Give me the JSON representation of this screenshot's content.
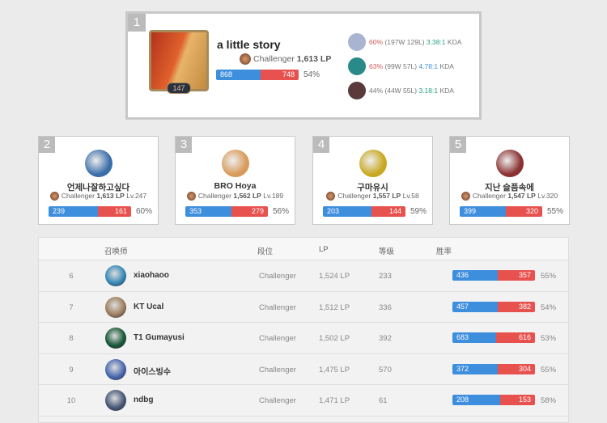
{
  "top": {
    "rank": "1",
    "name": "a little story",
    "level": "147",
    "tier": "Challenger",
    "lp": "1,613 LP",
    "wins": "868",
    "losses": "748",
    "winrate": "54%",
    "champions": [
      {
        "wr": "60%",
        "record": "(197W 129L)",
        "kda": "3.38:1",
        "kda_suffix": "KDA",
        "color": "#a8b4d0"
      },
      {
        "wr": "63%",
        "record": "(99W 57L)",
        "kda": "4.78:1",
        "kda_suffix": "KDA",
        "color": "#2a8a8a"
      },
      {
        "wr": "44%",
        "record": "(44W 55L)",
        "kda": "3.18:1",
        "kda_suffix": "KDA",
        "color": "#5a3a3a"
      }
    ]
  },
  "cards": [
    {
      "rank": "2",
      "name": "언제나잘하고싶다",
      "tier": "Challenger",
      "lp": "1,613 LP",
      "level": "Lv.247",
      "wins": "239",
      "losses": "161",
      "winrate": "60%",
      "color": "#3a6ea8"
    },
    {
      "rank": "3",
      "name": "BRO Hoya",
      "tier": "Challenger",
      "lp": "1,562 LP",
      "level": "Lv.189",
      "wins": "353",
      "losses": "279",
      "winrate": "56%",
      "color": "#d89a5a"
    },
    {
      "rank": "4",
      "name": "구마유시",
      "tier": "Challenger",
      "lp": "1,557 LP",
      "level": "Lv.58",
      "wins": "203",
      "losses": "144",
      "winrate": "59%",
      "color": "#c8a820"
    },
    {
      "rank": "5",
      "name": "지난 슬픔속에",
      "tier": "Challenger",
      "lp": "1,547 LP",
      "level": "Lv.320",
      "wins": "399",
      "losses": "320",
      "winrate": "55%",
      "color": "#8a3030"
    }
  ],
  "table": {
    "headers": [
      "召唤师",
      "段位",
      "LP",
      "等级",
      "胜率"
    ],
    "rows": [
      {
        "rank": "6",
        "name": "xiaohaoo",
        "tier": "Challenger",
        "lp": "1,524 LP",
        "level": "233",
        "wins": "436",
        "losses": "357",
        "winrate": "55%",
        "color": "#3a8ab8"
      },
      {
        "rank": "7",
        "name": "KT Ucal",
        "tier": "Challenger",
        "lp": "1,512 LP",
        "level": "336",
        "wins": "457",
        "losses": "382",
        "winrate": "54%",
        "color": "#a08060"
      },
      {
        "rank": "8",
        "name": "T1 Gumayusi",
        "tier": "Challenger",
        "lp": "1,502 LP",
        "level": "392",
        "wins": "683",
        "losses": "616",
        "winrate": "53%",
        "color": "#1a5a3a"
      },
      {
        "rank": "9",
        "name": "아이스빙수",
        "tier": "Challenger",
        "lp": "1,475 LP",
        "level": "570",
        "wins": "372",
        "losses": "304",
        "winrate": "55%",
        "color": "#4a6ab0"
      },
      {
        "rank": "10",
        "name": "ndbg",
        "tier": "Challenger",
        "lp": "1,471 LP",
        "level": "61",
        "wins": "208",
        "losses": "153",
        "winrate": "58%",
        "color": "#4a5a7a"
      }
    ]
  }
}
